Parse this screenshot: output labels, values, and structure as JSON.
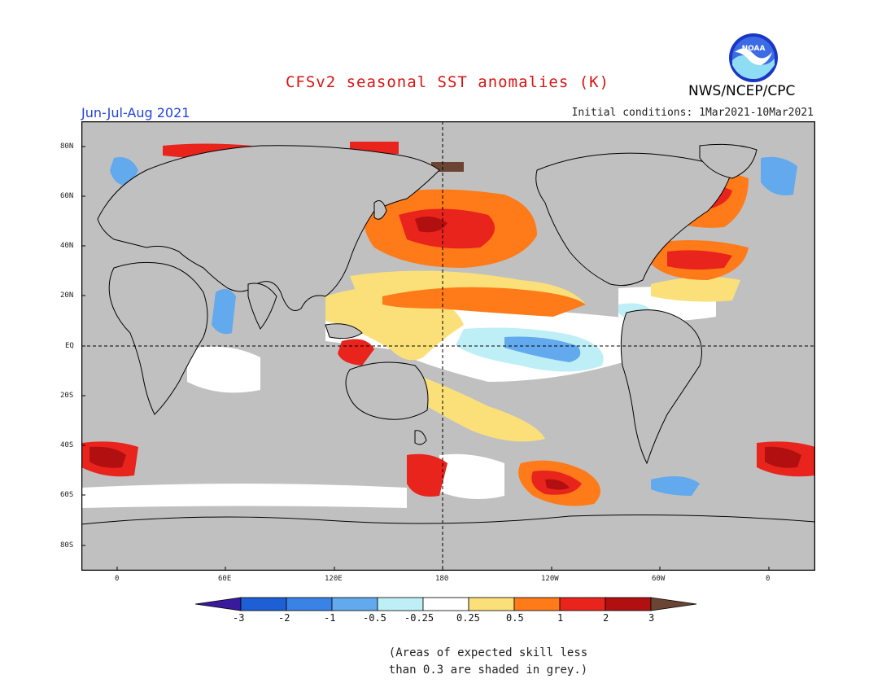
{
  "header": {
    "title": "CFSv2 seasonal SST anomalies (K)",
    "period": "Jun-Jul-Aug 2021",
    "initial_conditions": "Initial conditions: 1Mar2021-10Mar2021",
    "agency": "NWS/NCEP/CPC",
    "logo_text": "NOAA"
  },
  "map": {
    "y_labels": [
      "80N",
      "60N",
      "40N",
      "20N",
      "EQ",
      "20S",
      "40S",
      "60S",
      "80S"
    ],
    "x_labels": [
      "0",
      "60E",
      "120E",
      "180",
      "120W",
      "60W",
      "0"
    ]
  },
  "legend": {
    "labels": [
      "-3",
      "-2",
      "-1",
      "-0.5",
      "-0.25",
      "0.25",
      "0.5",
      "1",
      "2",
      "3"
    ],
    "colors": [
      "#3a1a9c",
      "#1e5fd6",
      "#3a83e6",
      "#62a9ee",
      "#bfeff6",
      "#ffffff",
      "#fbe07a",
      "#ff7a18",
      "#e8241c",
      "#b20f10",
      "#6b4533"
    ]
  },
  "footnote": {
    "line1": "(Areas of expected skill less",
    "line2": "than 0.3 are shaded in grey.)"
  },
  "colors": {
    "title": "#d81414",
    "period": "#2244dd",
    "grey_mask": "#c0c0c0",
    "land": "#c0c0c0"
  }
}
